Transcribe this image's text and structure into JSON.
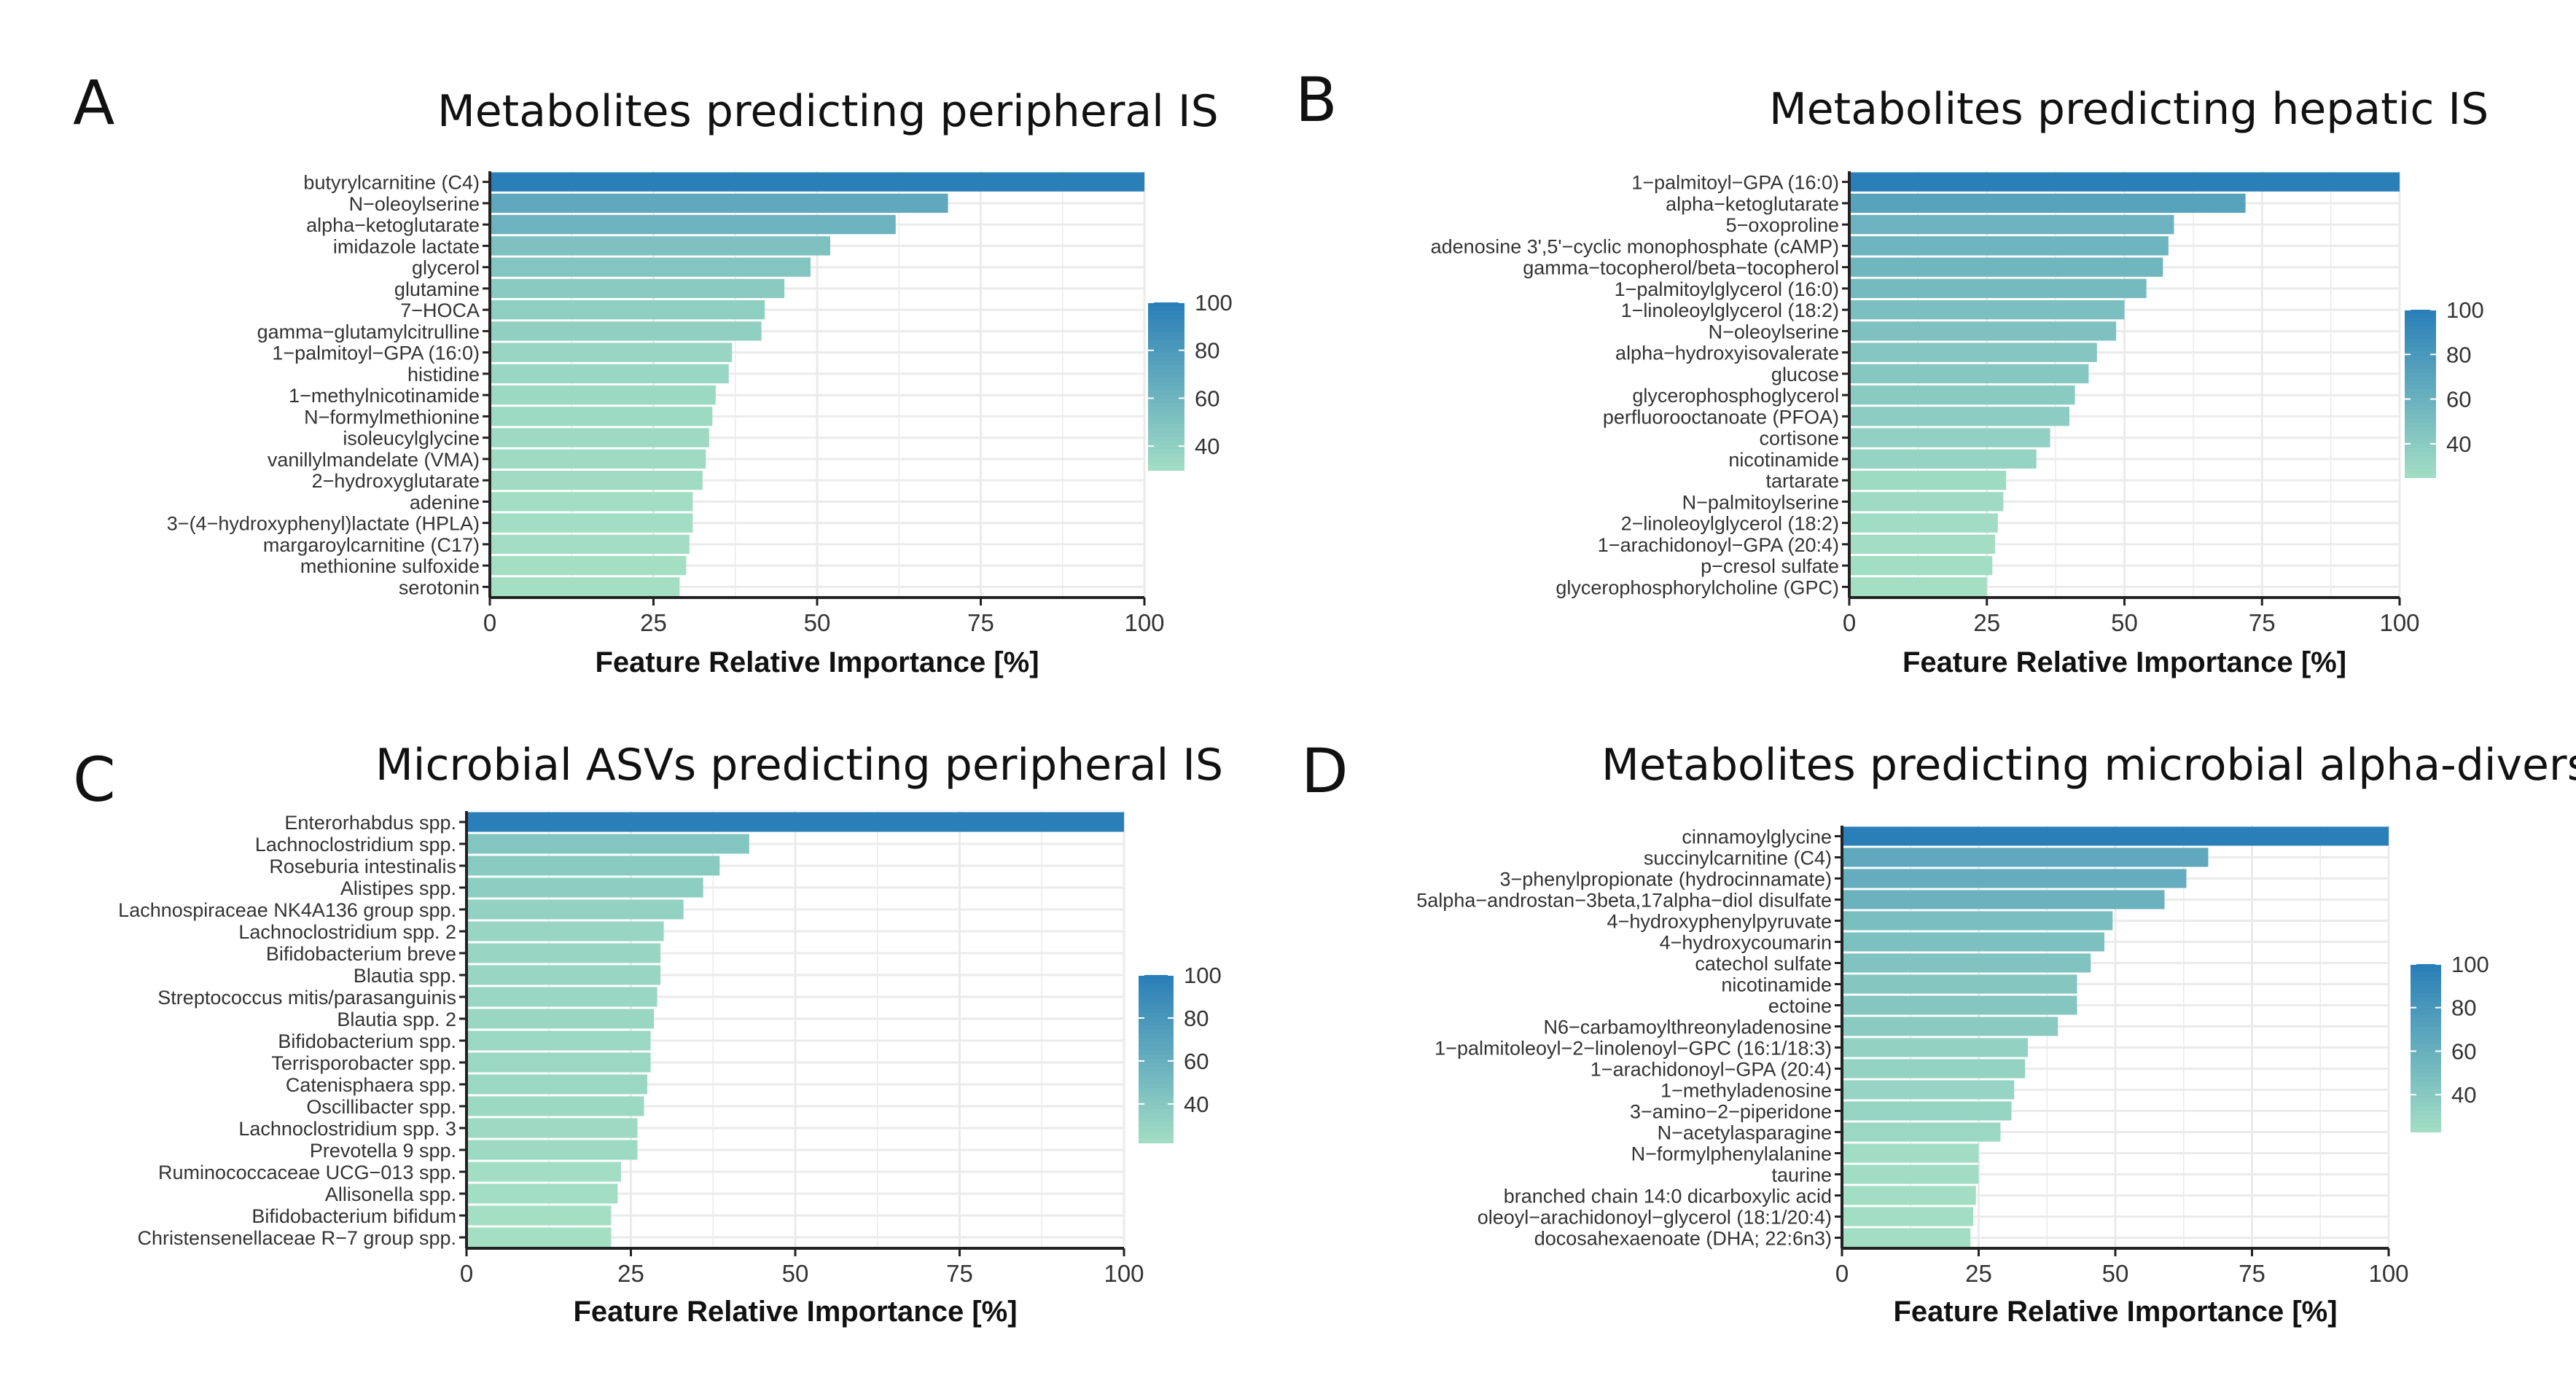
{
  "figure": {
    "colors": {
      "low": "#a4dfc4",
      "high": "#2b7fb8",
      "grid": "#ebebeb",
      "axis": "#222222"
    }
  },
  "panels": [
    {
      "letter": "A",
      "title": "Metabolites predicting peripheral IS",
      "chart_data": {
        "type": "bar",
        "orientation": "horizontal",
        "title": "Metabolites predicting peripheral IS",
        "xlabel": "Feature Relative Importance [%]",
        "ylabel": "",
        "xlim": [
          0,
          100
        ],
        "xticks": [
          "0",
          "25",
          "50",
          "75",
          "100"
        ],
        "legend": {
          "ticks": [
            "100",
            "80",
            "60",
            "40"
          ],
          "range": [
            30,
            100
          ]
        },
        "categories": [
          "butyrylcarnitine (C4)",
          "N−oleoylserine",
          "alpha−ketoglutarate",
          "imidazole lactate",
          "glycerol",
          "glutamine",
          "7−HOCA",
          "gamma−glutamylcitrulline",
          "1−palmitoyl−GPA (16:0)",
          "histidine",
          "1−methylnicotinamide",
          "N−formylmethionine",
          "isoleucylglycine",
          "vanillylmandelate (VMA)",
          "2−hydroxyglutarate",
          "adenine",
          "3−(4−hydroxyphenyl)lactate (HPLA)",
          "margaroylcarnitine (C17)",
          "methionine sulfoxide",
          "serotonin"
        ],
        "values": [
          100,
          70,
          62,
          52,
          49,
          45,
          42,
          41.5,
          37,
          36.5,
          34.5,
          34,
          33.5,
          33,
          32.5,
          31,
          31,
          30.5,
          30,
          29
        ]
      }
    },
    {
      "letter": "B",
      "title": "Metabolites predicting hepatic IS",
      "chart_data": {
        "type": "bar",
        "orientation": "horizontal",
        "title": "Metabolites predicting hepatic IS",
        "xlabel": "Feature Relative Importance [%]",
        "ylabel": "",
        "xlim": [
          0,
          100
        ],
        "xticks": [
          "0",
          "25",
          "50",
          "75",
          "100"
        ],
        "legend": {
          "ticks": [
            "100",
            "80",
            "60",
            "40"
          ],
          "range": [
            25,
            100
          ]
        },
        "categories": [
          "1−palmitoyl−GPA (16:0)",
          "alpha−ketoglutarate",
          "5−oxoproline",
          "adenosine 3',5'−cyclic monophosphate (cAMP)",
          "gamma−tocopherol/beta−tocopherol",
          "1−palmitoylglycerol (16:0)",
          "1−linoleoylglycerol (18:2)",
          "N−oleoylserine",
          "alpha−hydroxyisovalerate",
          "glucose",
          "glycerophosphoglycerol",
          "perfluorooctanoate (PFOA)",
          "cortisone",
          "nicotinamide",
          "tartarate",
          "N−palmitoylserine",
          "2−linoleoylglycerol (18:2)",
          "1−arachidonoyl−GPA (20:4)",
          "p−cresol sulfate",
          "glycerophosphorylcholine (GPC)"
        ],
        "values": [
          100,
          72,
          59,
          58,
          57,
          54,
          50,
          48.5,
          45,
          43.5,
          41,
          40,
          36.5,
          34,
          28.5,
          28,
          27,
          26.5,
          26,
          25
        ]
      }
    },
    {
      "letter": "C",
      "title": "Microbial ASVs predicting peripheral IS",
      "chart_data": {
        "type": "bar",
        "orientation": "horizontal",
        "title": "Microbial ASVs predicting peripheral IS",
        "xlabel": "Feature Relative Importance [%]",
        "ylabel": "",
        "xlim": [
          0,
          100
        ],
        "xticks": [
          "0",
          "25",
          "50",
          "75",
          "100"
        ],
        "legend": {
          "ticks": [
            "100",
            "80",
            "60",
            "40"
          ],
          "range": [
            22,
            100
          ]
        },
        "categories": [
          "Enterorhabdus spp.",
          "Lachnoclostridium spp.",
          "Roseburia intestinalis",
          "Alistipes spp.",
          "Lachnospiraceae NK4A136 group spp.",
          "Lachnoclostridium spp. 2",
          "Bifidobacterium breve",
          "Blautia spp.",
          "Streptococcus mitis/parasanguinis",
          "Blautia spp. 2",
          "Bifidobacterium spp.",
          "Terrisporobacter spp.",
          "Catenisphaera spp.",
          "Oscillibacter spp.",
          "Lachnoclostridium spp. 3",
          "Prevotella 9 spp.",
          "Ruminococcaceae UCG−013 spp.",
          "Allisonella spp.",
          "Bifidobacterium bifidum",
          "Christensenellaceae R−7 group spp."
        ],
        "values": [
          100,
          43,
          38.5,
          36,
          33,
          30,
          29.5,
          29.5,
          29,
          28.5,
          28,
          28,
          27.5,
          27,
          26,
          26,
          23.5,
          23,
          22,
          22
        ]
      }
    },
    {
      "letter": "D",
      "title": "Metabolites predicting microbial alpha-diversity",
      "chart_data": {
        "type": "bar",
        "orientation": "horizontal",
        "title": "Metabolites predicting microbial alpha-diversity",
        "xlabel": "Feature Relative Importance [%]",
        "ylabel": "",
        "xlim": [
          0,
          100
        ],
        "xticks": [
          "0",
          "25",
          "50",
          "75",
          "100"
        ],
        "legend": {
          "ticks": [
            "100",
            "80",
            "60",
            "40"
          ],
          "range": [
            23,
            100
          ]
        },
        "categories": [
          "cinnamoylglycine",
          "succinylcarnitine (C4)",
          "3−phenylpropionate (hydrocinnamate)",
          "5alpha−androstan−3beta,17alpha−diol disulfate",
          "4−hydroxyphenylpyruvate",
          "4−hydroxycoumarin",
          "catechol sulfate",
          "nicotinamide",
          "ectoine",
          "N6−carbamoylthreonyladenosine",
          "1−palmitoleoyl−2−linolenoyl−GPC (16:1/18:3)",
          "1−arachidonoyl−GPA (20:4)",
          "1−methyladenosine",
          "3−amino−2−piperidone",
          "N−acetylasparagine",
          "N−formylphenylalanine",
          "taurine",
          "branched chain 14:0 dicarboxylic acid",
          "oleoyl−arachidonoyl−glycerol (18:1/20:4)",
          "docosahexaenoate (DHA; 22:6n3)"
        ],
        "values": [
          100,
          67,
          63,
          59,
          49.5,
          48,
          45.5,
          43,
          43,
          39.5,
          34,
          33.5,
          31.5,
          31,
          29,
          25,
          25,
          24.5,
          24,
          23.5
        ]
      }
    }
  ]
}
